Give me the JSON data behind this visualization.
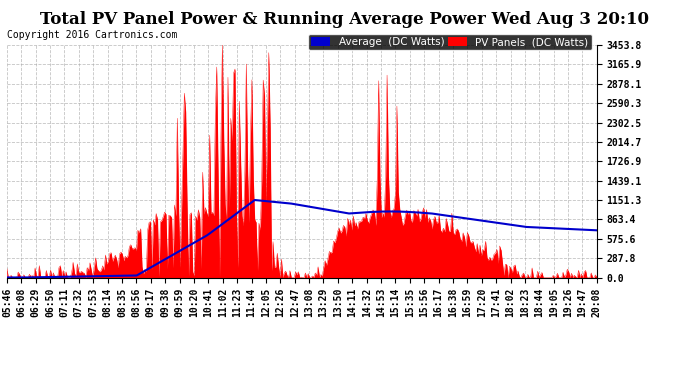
{
  "title": "Total PV Panel Power & Running Average Power Wed Aug 3 20:10",
  "copyright": "Copyright 2016 Cartronics.com",
  "yticks": [
    0.0,
    287.8,
    575.6,
    863.4,
    1151.3,
    1439.1,
    1726.9,
    2014.7,
    2302.5,
    2590.3,
    2878.1,
    3165.9,
    3453.8
  ],
  "ymax": 3453.8,
  "ymin": 0.0,
  "legend_avg_label": "Average  (DC Watts)",
  "legend_pv_label": "PV Panels  (DC Watts)",
  "avg_color": "#0000cc",
  "pv_color": "#ff0000",
  "bg_color": "#ffffff",
  "grid_color": "#aaaaaa",
  "title_fontsize": 12,
  "copyright_fontsize": 7,
  "legend_fontsize": 7.5,
  "tick_fontsize": 7,
  "time_labels": [
    "05:46",
    "06:08",
    "06:29",
    "06:50",
    "07:11",
    "07:32",
    "07:53",
    "08:14",
    "08:35",
    "08:56",
    "09:17",
    "09:38",
    "09:59",
    "10:20",
    "10:41",
    "11:02",
    "11:23",
    "11:44",
    "12:05",
    "12:26",
    "12:47",
    "13:08",
    "13:29",
    "13:50",
    "14:11",
    "14:32",
    "14:53",
    "15:14",
    "15:35",
    "15:56",
    "16:17",
    "16:38",
    "16:59",
    "17:20",
    "17:41",
    "18:02",
    "18:23",
    "18:44",
    "19:05",
    "19:26",
    "19:47",
    "20:08"
  ]
}
